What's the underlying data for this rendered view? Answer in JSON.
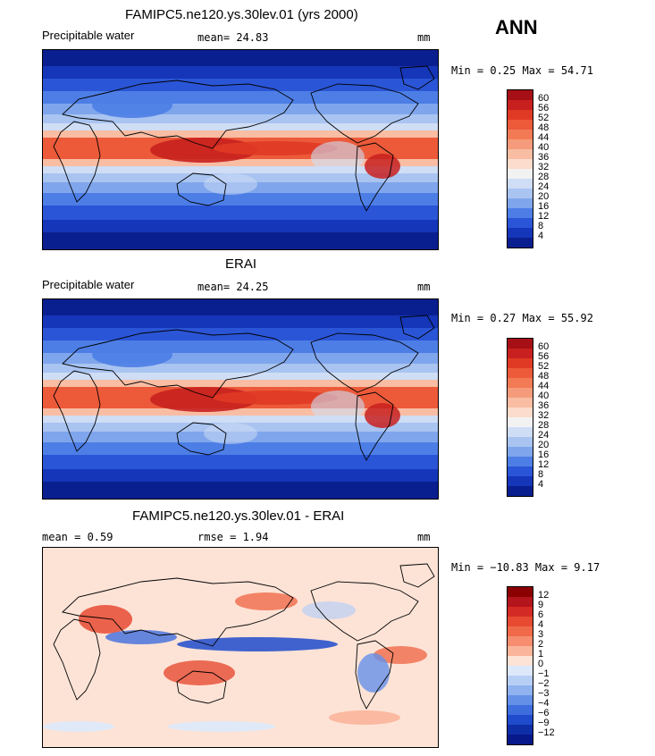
{
  "season": "ANN",
  "panels": [
    {
      "id": "model",
      "title": "FAMIPC5.ne120.ys.30lev.01 (yrs 2000)",
      "variable": "Precipitable water",
      "stat1": "mean=   24.83",
      "stat2": "",
      "units": "mm",
      "minmax": "Min =    0.25 Max =   54.71",
      "colorbar": {
        "labels": [
          "60",
          "56",
          "52",
          "48",
          "44",
          "40",
          "36",
          "32",
          "28",
          "24",
          "20",
          "16",
          "12",
          "8",
          "4"
        ],
        "colors": [
          "#a50f15",
          "#c8201e",
          "#e03a25",
          "#ec5a3a",
          "#f27b55",
          "#f59b7b",
          "#f8bda3",
          "#fcdccc",
          "#f2f2f2",
          "#cfddf5",
          "#a9c4f0",
          "#7fa6ec",
          "#4d7ee6",
          "#2a55d6",
          "#1536b8",
          "#0a1f8f"
        ]
      },
      "palette": "full"
    },
    {
      "id": "obs",
      "title": "ERAI",
      "variable": "Precipitable water",
      "stat1": "mean=   24.25",
      "stat2": "",
      "units": "mm",
      "minmax": "Min =    0.27 Max =   55.92",
      "colorbar": {
        "labels": [
          "60",
          "56",
          "52",
          "48",
          "44",
          "40",
          "36",
          "32",
          "28",
          "24",
          "20",
          "16",
          "12",
          "8",
          "4"
        ],
        "colors": [
          "#a50f15",
          "#c8201e",
          "#e03a25",
          "#ec5a3a",
          "#f27b55",
          "#f59b7b",
          "#f8bda3",
          "#fcdccc",
          "#f2f2f2",
          "#cfddf5",
          "#a9c4f0",
          "#7fa6ec",
          "#4d7ee6",
          "#2a55d6",
          "#1536b8",
          "#0a1f8f"
        ]
      },
      "palette": "full"
    },
    {
      "id": "diff",
      "title": "FAMIPC5.ne120.ys.30lev.01 - ERAI",
      "variable": "mean =    0.59",
      "stat1": "rmse =    1.94",
      "stat2": "",
      "units": "mm",
      "minmax": "Min =  −10.83 Max =    9.17",
      "colorbar": {
        "labels": [
          "12",
          "9",
          "6",
          "4",
          "3",
          "2",
          "1",
          "0",
          "−1",
          "−2",
          "−3",
          "−4",
          "−6",
          "−9",
          "−12"
        ],
        "colors": [
          "#8b0000",
          "#b4141c",
          "#d42a24",
          "#e64b32",
          "#f06a4a",
          "#f58d6e",
          "#f9b49a",
          "#fde3d6",
          "#dde9fb",
          "#b8cff5",
          "#90b2ef",
          "#6590e8",
          "#3e6ddd",
          "#1f4bcc",
          "#0e2ea8",
          "#06188a"
        ]
      },
      "palette": "diff"
    }
  ]
}
